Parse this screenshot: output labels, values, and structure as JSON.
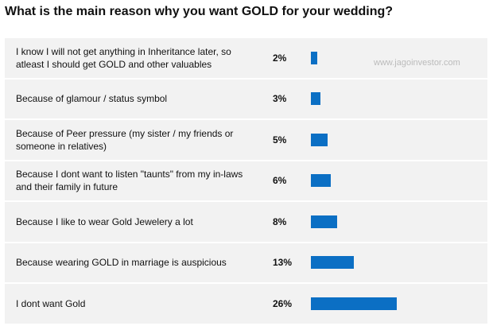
{
  "chart_data": {
    "type": "bar",
    "title": "What is the main reason why you want GOLD for your wedding?",
    "watermark": "www.jagoinvestor.com",
    "categories": [
      "I know I will not get anything in Inheritance later, so atleast I should get GOLD and other valuables",
      "Because of glamour / status symbol",
      "Because of Peer pressure (my sister / my friends or someone in relatives)",
      "Because I dont want to listen \"taunts\" from my in-laws and their family in future",
      "Because I like to wear Gold Jewelery a lot",
      "Because wearing GOLD in marriage is auspicious",
      "I dont want Gold"
    ],
    "values": [
      2,
      3,
      5,
      6,
      8,
      13,
      26
    ],
    "value_labels": [
      "2%",
      "3%",
      "5%",
      "6%",
      "8%",
      "13%",
      "26%"
    ],
    "color": "#0b6fc4"
  }
}
